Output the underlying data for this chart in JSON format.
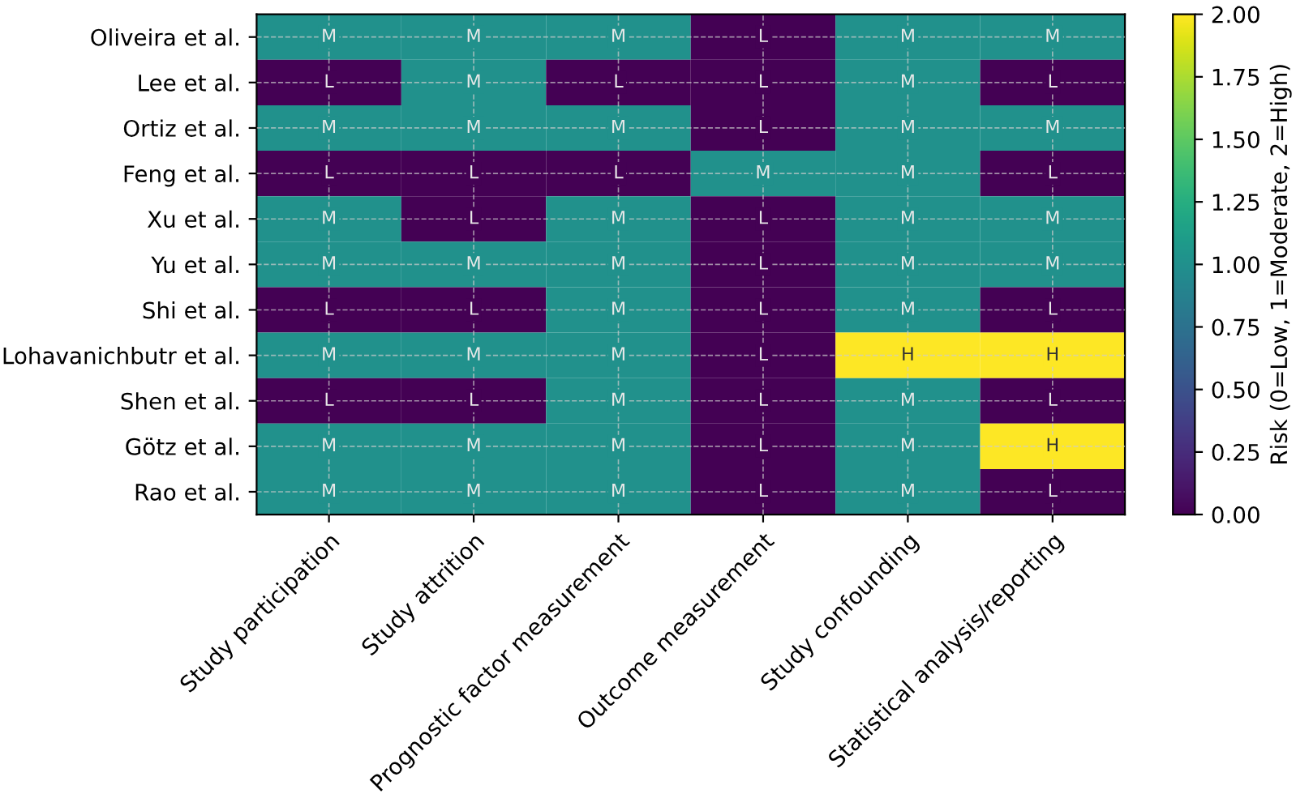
{
  "chart_data": {
    "type": "heatmap",
    "categories": [
      "Study participation",
      "Study attrition",
      "Prognostic factor measurement",
      "Outcome measurement",
      "Study confounding",
      "Statistical analysis/reporting"
    ],
    "y_categories": [
      "Oliveira et al.",
      "Lee et al.",
      "Ortiz et al.",
      "Feng et al.",
      "Xu et al.",
      "Yu et al.",
      "Shi et al.",
      "Lohavanichbutr et al.",
      "Shen et al.",
      "Götz et al.",
      "Rao et al."
    ],
    "cells": [
      [
        1,
        1,
        1,
        0,
        1,
        1
      ],
      [
        0,
        1,
        0,
        0,
        1,
        0
      ],
      [
        1,
        1,
        1,
        0,
        1,
        1
      ],
      [
        0,
        0,
        0,
        1,
        1,
        0
      ],
      [
        1,
        0,
        1,
        0,
        1,
        1
      ],
      [
        1,
        1,
        1,
        0,
        1,
        1
      ],
      [
        0,
        0,
        1,
        0,
        1,
        0
      ],
      [
        1,
        1,
        1,
        0,
        2,
        2
      ],
      [
        0,
        0,
        1,
        0,
        1,
        0
      ],
      [
        1,
        1,
        1,
        0,
        1,
        2
      ],
      [
        1,
        1,
        1,
        0,
        1,
        0
      ]
    ],
    "cell_labels": [
      [
        "M",
        "M",
        "M",
        "L",
        "M",
        "M"
      ],
      [
        "L",
        "M",
        "L",
        "L",
        "M",
        "L"
      ],
      [
        "M",
        "M",
        "M",
        "L",
        "M",
        "M"
      ],
      [
        "L",
        "L",
        "L",
        "M",
        "M",
        "L"
      ],
      [
        "M",
        "L",
        "M",
        "L",
        "M",
        "M"
      ],
      [
        "M",
        "M",
        "M",
        "L",
        "M",
        "M"
      ],
      [
        "L",
        "L",
        "M",
        "L",
        "M",
        "L"
      ],
      [
        "M",
        "M",
        "M",
        "L",
        "H",
        "H"
      ],
      [
        "L",
        "L",
        "M",
        "L",
        "M",
        "L"
      ],
      [
        "M",
        "M",
        "M",
        "L",
        "M",
        "H"
      ],
      [
        "M",
        "M",
        "M",
        "L",
        "M",
        "L"
      ]
    ],
    "clabel": "Risk (0=Low, 1=Moderate, 2=High)",
    "clim": [
      0,
      2
    ],
    "cticks": [
      {
        "value": 0,
        "label": "0.00"
      },
      {
        "value": 0.25,
        "label": "0.25"
      },
      {
        "value": 0.5,
        "label": "0.50"
      },
      {
        "value": 0.75,
        "label": "0.75"
      },
      {
        "value": 1,
        "label": "1.00"
      },
      {
        "value": 1.25,
        "label": "1.25"
      },
      {
        "value": 1.5,
        "label": "1.50"
      },
      {
        "value": 1.75,
        "label": "1.75"
      },
      {
        "value": 2,
        "label": "2.00"
      }
    ],
    "grid": true
  }
}
